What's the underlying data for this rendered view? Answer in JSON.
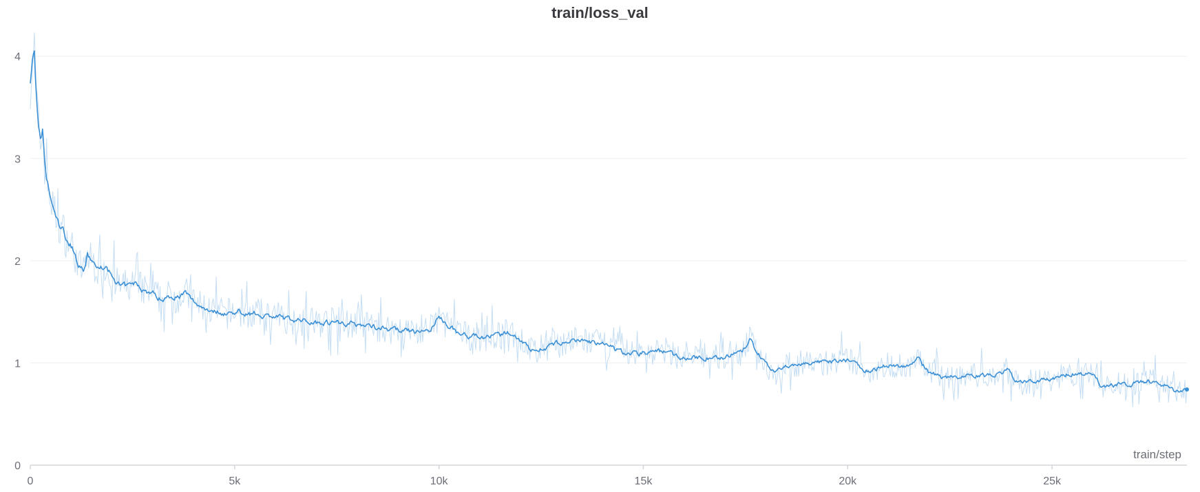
{
  "chart_data": {
    "type": "line",
    "title": "train/loss_val",
    "xlabel": "train/step",
    "ylabel": "",
    "xlim": [
      0,
      28300
    ],
    "ylim": [
      0,
      4.2
    ],
    "x_ticks": [
      {
        "value": 0,
        "label": "0"
      },
      {
        "value": 5000,
        "label": "5k"
      },
      {
        "value": 10000,
        "label": "10k"
      },
      {
        "value": 15000,
        "label": "15k"
      },
      {
        "value": 20000,
        "label": "20k"
      },
      {
        "value": 25000,
        "label": "25k"
      }
    ],
    "y_ticks": [
      {
        "value": 0,
        "label": "0"
      },
      {
        "value": 1,
        "label": "1"
      },
      {
        "value": 2,
        "label": "2"
      },
      {
        "value": 3,
        "label": "3"
      },
      {
        "value": 4,
        "label": "4"
      }
    ],
    "grid": "horizontal",
    "colors": {
      "line": "#3b8fd4",
      "raw_line": "#c4ddf3",
      "grid": "#eeeff1",
      "axis": "#d3d5da"
    },
    "series": [
      {
        "x": [
          0,
          50,
          100,
          150,
          200,
          250,
          300,
          350,
          400,
          500,
          600,
          700,
          800,
          900,
          1000,
          1100,
          1200,
          1300,
          1400,
          1500,
          1600,
          1700,
          1800,
          2000,
          2200,
          2400,
          2600,
          2800,
          3000,
          3200,
          3400,
          3600,
          3800,
          4000,
          4200,
          4400,
          4600,
          4800,
          5000,
          5500,
          6000,
          6500,
          7000,
          7500,
          8000,
          8500,
          9000,
          9500,
          9800,
          10000,
          10500,
          11000,
          11500,
          11800,
          12000,
          12300,
          12600,
          13000,
          13500,
          14000,
          14500,
          15000,
          15500,
          16000,
          16500,
          17000,
          17400,
          17600,
          17900,
          18200,
          18600,
          19000,
          19500,
          20000,
          20500,
          21000,
          21500,
          21700,
          22000,
          22500,
          23000,
          23500,
          23900,
          24200,
          24500,
          25000,
          25500,
          26000,
          26200,
          26500,
          27000,
          27500,
          27800,
          28000,
          28300
        ],
        "y": [
          3.75,
          3.95,
          4.05,
          3.6,
          3.3,
          3.15,
          3.25,
          2.95,
          2.8,
          2.6,
          2.45,
          2.35,
          2.3,
          2.2,
          2.15,
          2.05,
          1.95,
          1.9,
          2.05,
          2.0,
          1.95,
          1.9,
          1.95,
          1.85,
          1.75,
          1.75,
          1.78,
          1.7,
          1.68,
          1.62,
          1.65,
          1.65,
          1.68,
          1.6,
          1.55,
          1.52,
          1.5,
          1.48,
          1.5,
          1.48,
          1.45,
          1.42,
          1.4,
          1.4,
          1.38,
          1.35,
          1.32,
          1.3,
          1.33,
          1.45,
          1.28,
          1.25,
          1.27,
          1.3,
          1.22,
          1.12,
          1.15,
          1.2,
          1.22,
          1.18,
          1.1,
          1.1,
          1.12,
          1.05,
          1.05,
          1.06,
          1.1,
          1.22,
          1.05,
          0.9,
          0.98,
          1.0,
          1.0,
          1.03,
          0.92,
          0.98,
          0.97,
          1.05,
          0.9,
          0.85,
          0.88,
          0.87,
          0.93,
          0.8,
          0.82,
          0.84,
          0.9,
          0.88,
          0.78,
          0.78,
          0.8,
          0.82,
          0.78,
          0.72,
          0.74
        ]
      }
    ]
  }
}
